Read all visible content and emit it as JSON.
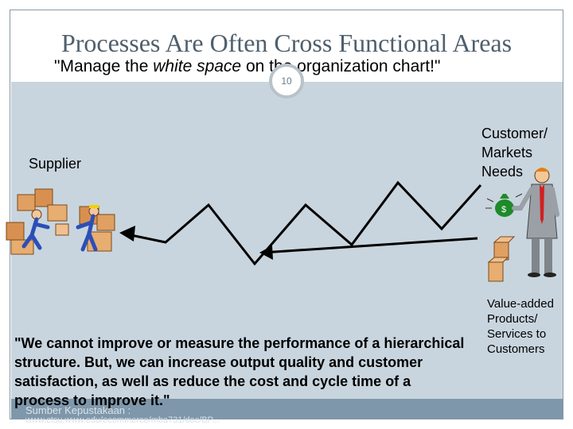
{
  "slide": {
    "title": "Processes Are Often Cross Functional Areas",
    "subtitle_pre": "\"Manage the ",
    "subtitle_em": "white space",
    "subtitle_post": " on the organization chart!\"",
    "slide_number": "10"
  },
  "labels": {
    "supplier": "Supplier",
    "customer_line1": "Customer/",
    "customer_line2": "Markets",
    "customer_line3": "Needs",
    "value_line1": "Value-added",
    "value_line2": "Products/",
    "value_line3": "Services to",
    "value_line4": "Customers"
  },
  "quote": "\"We cannot improve or measure the performance of a hierarchical structure. But, we can increase output quality and customer satisfaction, as well as reduce the cost and cycle time of a process to improve it.\"",
  "footer": {
    "source_label": "Sumber Kepustakaan :",
    "source_url": "www.ctsu.www.edu/ecommerce/mba731/doc/BP..."
  },
  "colors": {
    "title": "#4f5f6d",
    "panel": "#c9d5de",
    "footer_bar": "#7f97aa",
    "money_bag": "#1e8a2a"
  },
  "icons": [
    "boxes-workers-icon",
    "process-arrow-icon",
    "customer-man-icon",
    "money-bag-icon",
    "product-boxes-icon"
  ]
}
